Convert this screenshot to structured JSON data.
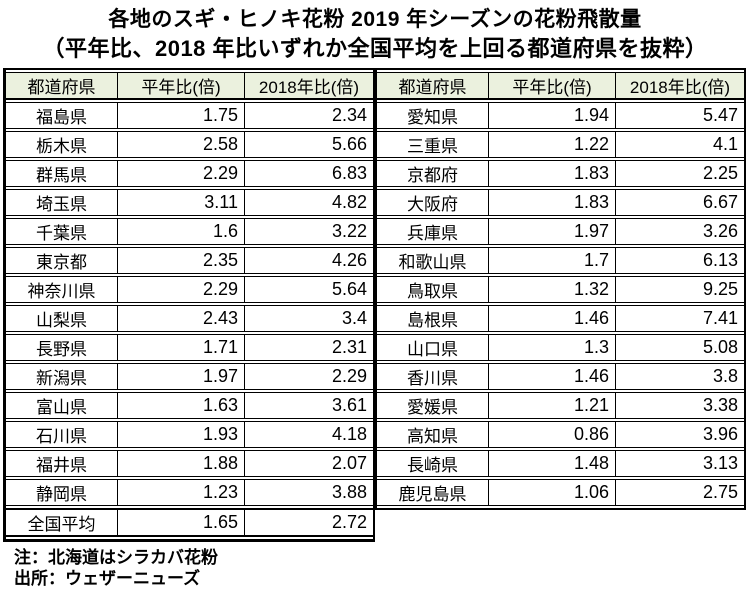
{
  "chart_data": {
    "type": "table",
    "title": "各地のスギ・ヒノキ花粉 2019 年シーズンの花粉飛散量",
    "subtitle": "（平年比、2018 年比いずれか全国平均を上回る都道府県を抜粋）",
    "columns": [
      "都道府県",
      "平年比(倍)",
      "2018年比(倍)"
    ],
    "left_table": {
      "rows": [
        [
          "福島県",
          1.75,
          2.34
        ],
        [
          "栃木県",
          2.58,
          5.66
        ],
        [
          "群馬県",
          2.29,
          6.83
        ],
        [
          "埼玉県",
          3.11,
          4.82
        ],
        [
          "千葉県",
          1.6,
          3.22
        ],
        [
          "東京都",
          2.35,
          4.26
        ],
        [
          "神奈川県",
          2.29,
          5.64
        ],
        [
          "山梨県",
          2.43,
          3.4
        ],
        [
          "長野県",
          1.71,
          2.31
        ],
        [
          "新潟県",
          1.97,
          2.29
        ],
        [
          "富山県",
          1.63,
          3.61
        ],
        [
          "石川県",
          1.93,
          4.18
        ],
        [
          "福井県",
          1.88,
          2.07
        ],
        [
          "静岡県",
          1.23,
          3.88
        ]
      ],
      "summary_row": [
        "全国平均",
        1.65,
        2.72
      ]
    },
    "right_table": {
      "rows": [
        [
          "愛知県",
          1.94,
          5.47
        ],
        [
          "三重県",
          1.22,
          4.1
        ],
        [
          "京都府",
          1.83,
          2.25
        ],
        [
          "大阪府",
          1.83,
          6.67
        ],
        [
          "兵庫県",
          1.97,
          3.26
        ],
        [
          "和歌山県",
          1.7,
          6.13
        ],
        [
          "鳥取県",
          1.32,
          9.25
        ],
        [
          "島根県",
          1.46,
          7.41
        ],
        [
          "山口県",
          1.3,
          5.08
        ],
        [
          "香川県",
          1.46,
          3.8
        ],
        [
          "愛媛県",
          1.21,
          3.38
        ],
        [
          "高知県",
          0.86,
          3.96
        ],
        [
          "長崎県",
          1.48,
          3.13
        ],
        [
          "鹿児島県",
          1.06,
          2.75
        ]
      ]
    },
    "notes": [
      "注：北海道はシラカバ花粉",
      "出所：ウェザーニューズ"
    ],
    "colors": {
      "header_bg": "#ebf1de",
      "border": "#000000",
      "text": "#000000",
      "background": "#ffffff"
    }
  }
}
